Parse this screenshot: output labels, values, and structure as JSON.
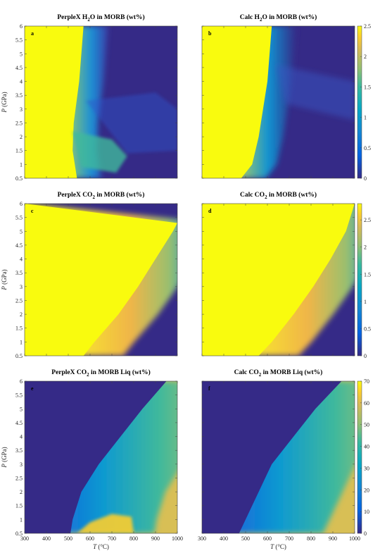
{
  "chart_data": [
    {
      "type": "heatmap",
      "panel_label": "a",
      "title": "PerpleX H2O in MORB (wt%)",
      "title_main": "PerpleX H",
      "title_sub": "2",
      "title_rest": "O in MORB (wt%)",
      "xlim": [
        300,
        1000
      ],
      "ylim": [
        0.5,
        6
      ],
      "ylabel_italic": "P",
      "ylabel_rest": " (GPa)",
      "yticks": [
        "0.5",
        "1",
        "1.5",
        "2",
        "2.5",
        "3",
        "3.5",
        "4",
        "4.5",
        "5",
        "5.5",
        "6"
      ],
      "clim": [
        0,
        2.5
      ],
      "colorbar": false,
      "description_boundary_T_at_P": [
        [
          0.5,
          540
        ],
        [
          1.5,
          520
        ],
        [
          2.5,
          525
        ],
        [
          4,
          550
        ],
        [
          5.5,
          565
        ],
        [
          6,
          570
        ]
      ]
    },
    {
      "type": "heatmap",
      "panel_label": "b",
      "title": "Calc H2O in MORB (wt%)",
      "title_main": "Calc H",
      "title_sub": "2",
      "title_rest": "O in MORB (wt%)",
      "xlim": [
        300,
        1000
      ],
      "ylim": [
        0.5,
        6
      ],
      "clim": [
        0,
        2.5
      ],
      "colorbar": true,
      "cbar_ticks": [
        "0",
        "0.5",
        "1",
        "1.5",
        "2",
        "2.5"
      ],
      "cbar_values": [
        0,
        0.5,
        1,
        1.5,
        2,
        2.5
      ],
      "description_boundary_T_at_P": [
        [
          0.5,
          480
        ],
        [
          1.0,
          530
        ],
        [
          2.0,
          560
        ],
        [
          3.0,
          580
        ],
        [
          4.0,
          600
        ],
        [
          5.0,
          610
        ],
        [
          6.0,
          620
        ]
      ]
    },
    {
      "type": "heatmap",
      "panel_label": "c",
      "title": "PerpleX CO2 in MORB (wt%)",
      "title_main": "PerpleX CO",
      "title_sub": "2",
      "title_rest": " in MORB (wt%)",
      "xlim": [
        300,
        1000
      ],
      "ylim": [
        0.5,
        6
      ],
      "ylabel_italic": "P",
      "ylabel_rest": " (GPa)",
      "yticks": [
        "0.5",
        "1",
        "1.5",
        "2",
        "2.5",
        "3",
        "3.5",
        "4",
        "4.5",
        "5",
        "5.5",
        "6"
      ],
      "clim": [
        0,
        2.8
      ],
      "colorbar": false,
      "description_boundary_T_at_P": [
        [
          0.5,
          570
        ],
        [
          1.0,
          620
        ],
        [
          2.0,
          730
        ],
        [
          3.0,
          820
        ],
        [
          4.0,
          900
        ],
        [
          5.0,
          980
        ],
        [
          5.3,
          1000
        ]
      ]
    },
    {
      "type": "heatmap",
      "panel_label": "d",
      "title": "Calc CO2 in MORB (wt%)",
      "title_main": "Calc CO",
      "title_sub": "2",
      "title_rest": " in MORB (wt%)",
      "xlim": [
        300,
        1000
      ],
      "ylim": [
        0.5,
        6
      ],
      "clim": [
        0,
        2.8
      ],
      "colorbar": true,
      "cbar_ticks": [
        "0",
        "0.5",
        "1",
        "1.5",
        "2",
        "2.5"
      ],
      "cbar_values": [
        0,
        0.5,
        1,
        1.5,
        2,
        2.5
      ],
      "description_boundary_T_at_P": [
        [
          0.5,
          560
        ],
        [
          1.0,
          620
        ],
        [
          2.0,
          720
        ],
        [
          3.0,
          810
        ],
        [
          4.0,
          890
        ],
        [
          5.0,
          960
        ],
        [
          6.0,
          1000
        ]
      ]
    },
    {
      "type": "heatmap",
      "panel_label": "e",
      "title": "PerpleX CO2 in MORB Liq (wt%)",
      "title_main": "PerpleX CO",
      "title_sub": "2",
      "title_rest": " in MORB Liq (wt%)",
      "xlim": [
        300,
        1000
      ],
      "ylim": [
        0.5,
        6
      ],
      "ylabel_italic": "P",
      "ylabel_rest": " (GPa)",
      "xlabel_italic": "T",
      "xlabel_rest": " (°C)",
      "xticks": [
        "300",
        "400",
        "500",
        "600",
        "700",
        "800",
        "900",
        "1000"
      ],
      "yticks": [
        "0.5",
        "1",
        "1.5",
        "2",
        "2.5",
        "3",
        "3.5",
        "4",
        "4.5",
        "5",
        "5.5",
        "6"
      ],
      "clim": [
        0,
        70
      ],
      "colorbar": false,
      "description_boundary_T_at_P": [
        [
          0.5,
          510
        ],
        [
          1.0,
          520
        ],
        [
          2.0,
          560
        ],
        [
          3.0,
          640
        ],
        [
          4.0,
          740
        ],
        [
          5.0,
          840
        ],
        [
          6.0,
          950
        ]
      ]
    },
    {
      "type": "heatmap",
      "panel_label": "f",
      "title": "Calc CO2 in MORB Liq (wt%)",
      "title_main": "Calc CO",
      "title_sub": "2",
      "title_rest": " in MORB Liq (wt%)",
      "xlim": [
        300,
        1000
      ],
      "ylim": [
        0.5,
        6
      ],
      "xlabel_italic": "T",
      "xlabel_rest": " (°C)",
      "xticks": [
        "300",
        "400",
        "500",
        "600",
        "700",
        "800",
        "900",
        "1000"
      ],
      "clim": [
        0,
        70
      ],
      "colorbar": true,
      "cbar_ticks": [
        "0",
        "10",
        "20",
        "30",
        "40",
        "50",
        "60",
        "70"
      ],
      "cbar_values": [
        0,
        10,
        20,
        30,
        40,
        50,
        60,
        70
      ],
      "description_boundary_T_at_P": [
        [
          0.5,
          470
        ],
        [
          1.0,
          500
        ],
        [
          2.0,
          560
        ],
        [
          3.0,
          620
        ],
        [
          4.0,
          720
        ],
        [
          5.0,
          820
        ],
        [
          6.0,
          940
        ]
      ]
    }
  ],
  "colors": {
    "parula_dark": "#352a87",
    "parula_blue": "#0f5cdd",
    "parula_cyan": "#14a5c2",
    "parula_green": "#59bc8a",
    "parula_orange": "#eeb439",
    "parula_yellow": "#f9fb0e",
    "liq_tan": "#d8bf55"
  }
}
